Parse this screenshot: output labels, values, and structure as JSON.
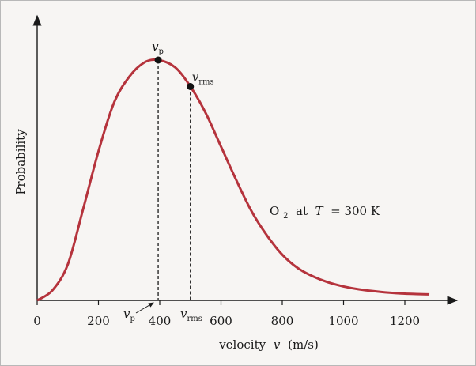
{
  "chart_data": {
    "type": "line",
    "title": "",
    "xlabel": "velocity",
    "xlabel_var": "v",
    "xlabel_unit": "(m/s)",
    "ylabel": "Probability",
    "xlim": [
      0,
      1300
    ],
    "x_ticks": [
      "0",
      "200",
      "400",
      "600",
      "800",
      "1000",
      "1200"
    ],
    "y_ticks": [],
    "grid": false,
    "legend": "none",
    "series": [
      {
        "color": "#b5333c",
        "x": [
          0,
          50,
          100,
          150,
          200,
          250,
          300,
          350,
          395,
          450,
          500,
          550,
          600,
          650,
          700,
          750,
          800,
          850,
          900,
          950,
          1000,
          1050,
          1100,
          1150,
          1200,
          1250,
          1280
        ],
        "y": [
          0,
          0.042,
          0.15,
          0.38,
          0.62,
          0.82,
          0.93,
          0.99,
          1.0,
          0.97,
          0.89,
          0.78,
          0.64,
          0.5,
          0.37,
          0.27,
          0.19,
          0.135,
          0.1,
          0.075,
          0.058,
          0.046,
          0.038,
          0.032,
          0.028,
          0.026,
          0.025
        ]
      }
    ],
    "markers": [
      {
        "label_main": "v",
        "label_sub": "p",
        "x": 395,
        "y": 1.0
      },
      {
        "label_main": "v",
        "label_sub": "rms",
        "x": 500,
        "y": 0.89
      }
    ],
    "annotation": {
      "species": "O",
      "species_sub": "2",
      "text_at": " at ",
      "temp_var": "T",
      "temp_value": " = 300 K"
    },
    "axis_callouts": {
      "vp_main": "v",
      "vp_sub": "p",
      "vrms_main": "v",
      "vrms_sub": "rms"
    },
    "colors": {
      "curve": "#b5333c",
      "axis": "#1a1a1a",
      "background": "#f7f5f3"
    }
  }
}
